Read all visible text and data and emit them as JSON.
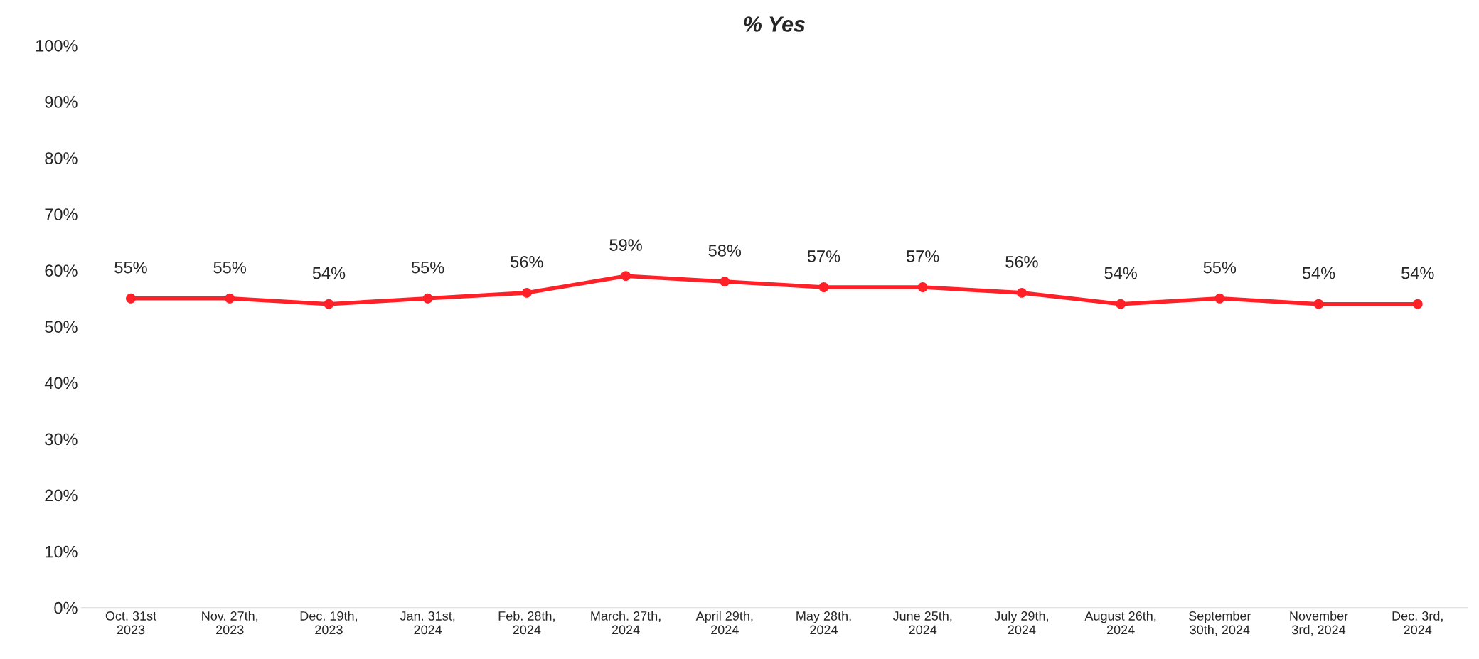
{
  "chart_data": {
    "type": "line",
    "title": "% Yes",
    "categories": [
      "Oct. 31st\n2023",
      "Nov. 27th,\n2023",
      "Dec. 19th,\n2023",
      "Jan. 31st,\n2024",
      "Feb. 28th,\n2024",
      "March. 27th,\n2024",
      "April 29th,\n2024",
      "May 28th,\n2024",
      "June 25th,\n2024",
      "July 29th,\n2024",
      "August 26th,\n2024",
      "September\n30th, 2024",
      "November\n3rd, 2024",
      "Dec. 3rd,\n2024"
    ],
    "series": [
      {
        "color": "#ff2028",
        "values": [
          55,
          55,
          54,
          55,
          56,
          59,
          58,
          57,
          57,
          56,
          54,
          55,
          54,
          54
        ],
        "value_labels": [
          "55%",
          "55%",
          "54%",
          "55%",
          "56%",
          "59%",
          "58%",
          "57%",
          "57%",
          "56%",
          "54%",
          "55%",
          "54%",
          "54%"
        ]
      }
    ],
    "ylim": [
      0,
      100
    ],
    "yticks": [
      {
        "value": 0,
        "label": "0%"
      },
      {
        "value": 10,
        "label": "10%"
      },
      {
        "value": 20,
        "label": "20%"
      },
      {
        "value": 30,
        "label": "30%"
      },
      {
        "value": 40,
        "label": "40%"
      },
      {
        "value": 50,
        "label": "50%"
      },
      {
        "value": 60,
        "label": "60%"
      },
      {
        "value": 70,
        "label": "70%"
      },
      {
        "value": 80,
        "label": "80%"
      },
      {
        "value": 90,
        "label": "90%"
      },
      {
        "value": 100,
        "label": "100%"
      }
    ],
    "marker": "circle",
    "line_style": "solid"
  }
}
